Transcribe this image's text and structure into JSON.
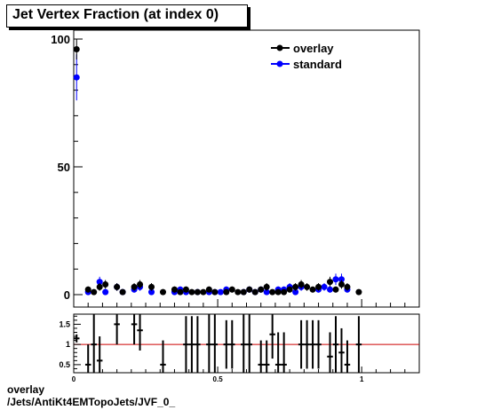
{
  "title": "Jet Vertex Fraction (at index 0)",
  "footer": {
    "line1": "overlay",
    "line2": "/Jets/AntiKt4EMTopoJets/JVF_0_"
  },
  "colors": {
    "overlay": "#000000",
    "standard": "#0000ff",
    "ratio_line": "#cc0000"
  },
  "chart_data": [
    {
      "type": "scatter",
      "title": "Jet Vertex Fraction (at index 0)",
      "xlabel": "",
      "ylabel": "",
      "xlim": [
        0,
        1.2
      ],
      "ylim": [
        0,
        100
      ],
      "y_ticks": [
        "0",
        "50",
        "100"
      ],
      "x_ticks": [
        "0",
        "0.5",
        "1"
      ],
      "legend": {
        "placement": "top-right",
        "entries": [
          "overlay",
          "standard"
        ]
      },
      "series": [
        {
          "name": "overlay",
          "x": [
            0.01,
            0.05,
            0.07,
            0.09,
            0.11,
            0.15,
            0.17,
            0.21,
            0.23,
            0.27,
            0.31,
            0.35,
            0.37,
            0.39,
            0.41,
            0.43,
            0.45,
            0.47,
            0.49,
            0.53,
            0.55,
            0.57,
            0.59,
            0.61,
            0.63,
            0.65,
            0.67,
            0.69,
            0.71,
            0.73,
            0.75,
            0.77,
            0.79,
            0.81,
            0.83,
            0.85,
            0.89,
            0.91,
            0.93,
            0.95,
            0.99
          ],
          "y": [
            96,
            2,
            1,
            3,
            4,
            3,
            1,
            3,
            4,
            3,
            1,
            2,
            1,
            2,
            1,
            1,
            1,
            2,
            1,
            1,
            2,
            1,
            1,
            2,
            1,
            2,
            3,
            1,
            1,
            1,
            2,
            3,
            4,
            3,
            2,
            3,
            5,
            2,
            4,
            3,
            1
          ],
          "yerr": [
            4,
            1.2,
            1,
            1.5,
            1.7,
            1.5,
            1,
            1.5,
            1.7,
            1.5,
            1,
            1.2,
            1,
            1.2,
            1,
            1,
            1,
            1.2,
            1,
            1,
            1.2,
            1,
            1,
            1.2,
            1,
            1.2,
            1.5,
            1,
            1,
            1,
            1.2,
            1.5,
            1.7,
            1.5,
            1.2,
            1.5,
            2,
            1.2,
            1.7,
            1.5,
            1
          ]
        },
        {
          "name": "standard",
          "x": [
            0.01,
            0.05,
            0.09,
            0.11,
            0.15,
            0.17,
            0.21,
            0.23,
            0.27,
            0.35,
            0.37,
            0.39,
            0.43,
            0.47,
            0.49,
            0.51,
            0.53,
            0.59,
            0.61,
            0.63,
            0.65,
            0.67,
            0.71,
            0.73,
            0.75,
            0.77,
            0.79,
            0.85,
            0.87,
            0.89,
            0.91,
            0.93,
            0.95
          ],
          "y": [
            85,
            1,
            5,
            1,
            3,
            1,
            2,
            3,
            1,
            1,
            2,
            1,
            1,
            1,
            1,
            1,
            2,
            1,
            2,
            1,
            2,
            1,
            2,
            2,
            3,
            1,
            3,
            2,
            3,
            2,
            6,
            6,
            2
          ],
          "yerr": [
            9,
            1,
            2,
            1,
            1.5,
            1,
            1.2,
            1.5,
            1,
            1,
            1.2,
            1,
            1,
            1,
            1,
            1,
            1.2,
            1,
            1.2,
            1,
            1.2,
            1,
            1.2,
            1.2,
            1.5,
            1,
            1.5,
            1.2,
            1.5,
            1.2,
            2.2,
            2.2,
            1.2
          ]
        }
      ]
    },
    {
      "type": "scatter",
      "title": "",
      "xlabel": "",
      "ylabel": "",
      "xlim": [
        0,
        1.2
      ],
      "ylim": [
        0.3,
        1.75
      ],
      "y_ticks": [
        "0.5",
        "1",
        "1.5"
      ],
      "x_ticks": [
        "0",
        "0.5",
        "1"
      ],
      "reference_line": 1,
      "series": [
        {
          "name": "",
          "x": [
            0.01,
            0.05,
            0.07,
            0.09,
            0.15,
            0.21,
            0.23,
            0.31,
            0.39,
            0.41,
            0.43,
            0.47,
            0.49,
            0.53,
            0.55,
            0.59,
            0.61,
            0.65,
            0.67,
            0.69,
            0.71,
            0.73,
            0.79,
            0.81,
            0.83,
            0.85,
            0.89,
            0.91,
            0.93,
            0.95,
            0.99
          ],
          "y": [
            1.15,
            0.5,
            1.0,
            0.6,
            1.5,
            1.5,
            1.35,
            0.5,
            1.0,
            1.0,
            1.0,
            1.0,
            1.0,
            1.0,
            1.0,
            1.0,
            1.0,
            0.5,
            0.5,
            1.25,
            0.5,
            0.5,
            1.0,
            1.0,
            1.0,
            1.0,
            0.7,
            1.0,
            0.8,
            0.5,
            1.0
          ],
          "yerr": [
            0.1,
            0.5,
            0.9,
            0.6,
            0.5,
            0.5,
            0.5,
            0.6,
            0.7,
            0.7,
            0.7,
            0.8,
            0.8,
            0.6,
            0.6,
            0.8,
            0.8,
            0.6,
            0.6,
            0.6,
            0.8,
            0.8,
            0.6,
            0.6,
            0.6,
            0.6,
            0.6,
            0.7,
            0.6,
            0.6,
            0.7
          ]
        }
      ]
    }
  ]
}
